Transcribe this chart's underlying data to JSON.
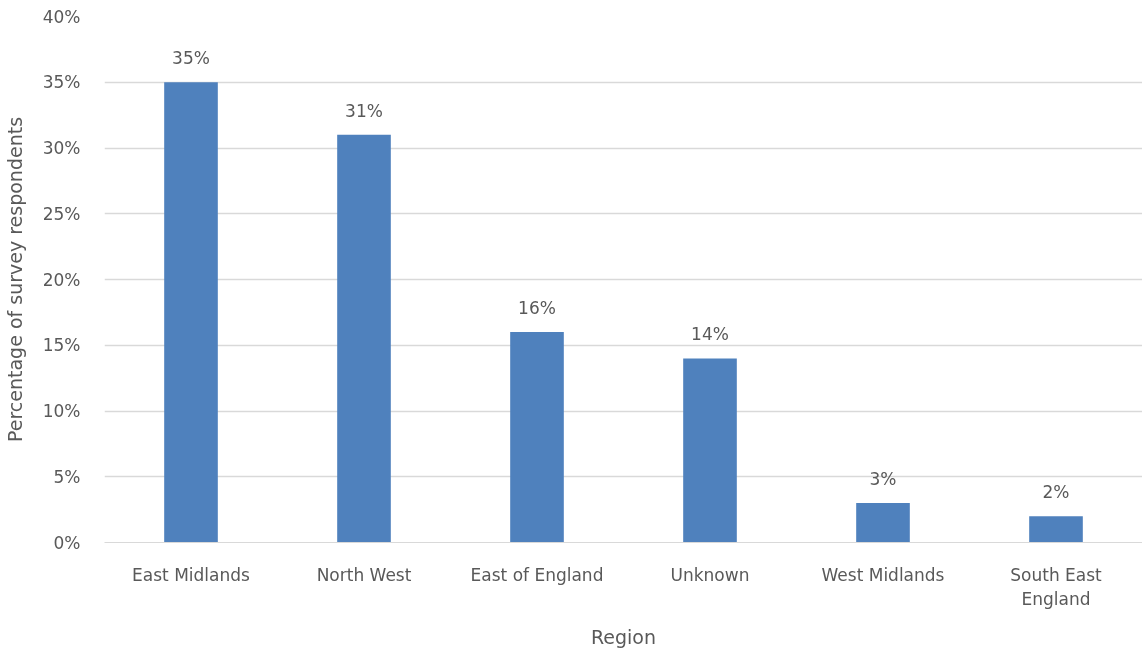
{
  "chart_data": {
    "type": "bar",
    "xlabel": "Region",
    "ylabel": "Percentage of survey respondents",
    "categories": [
      "East Midlands",
      "North West",
      "East of England",
      "Unknown",
      "West Midlands",
      "South East England"
    ],
    "values": [
      35,
      31,
      16,
      14,
      3,
      2
    ],
    "color": "#4f81bd",
    "value_labels": [
      "35%",
      "31%",
      "16%",
      "14%",
      "3%",
      "2%"
    ],
    "ylim": [
      0,
      40
    ],
    "yticks": [
      {
        "value": 0,
        "label": "0%"
      },
      {
        "value": 5,
        "label": "5%"
      },
      {
        "value": 10,
        "label": "10%"
      },
      {
        "value": 15,
        "label": "15%"
      },
      {
        "value": 20,
        "label": "20%"
      },
      {
        "value": 25,
        "label": "25%"
      },
      {
        "value": 30,
        "label": "30%"
      },
      {
        "value": 35,
        "label": "35%"
      },
      {
        "value": 40,
        "label": "40%"
      }
    ],
    "grid": "y"
  }
}
